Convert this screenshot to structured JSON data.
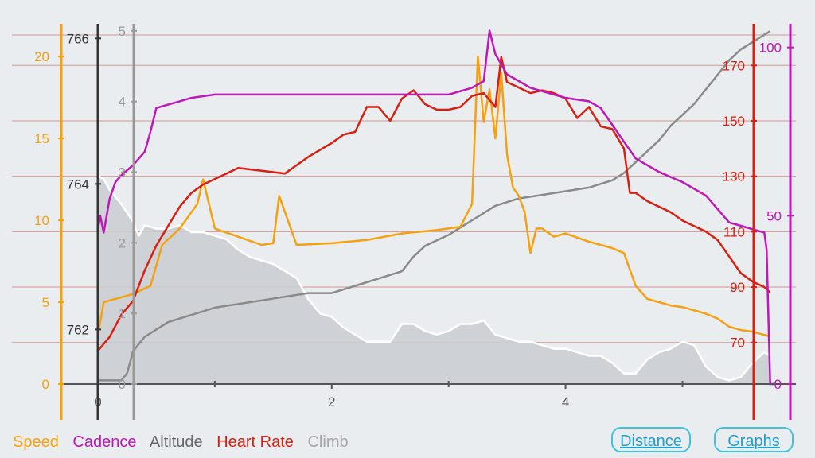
{
  "legend": {
    "speed": "Speed",
    "cadence": "Cadence",
    "altitude": "Altitude",
    "heart_rate": "Heart Rate",
    "climb": "Climb"
  },
  "buttons": {
    "distance": "Distance",
    "graphs": "Graphs"
  },
  "colors": {
    "speed": "#f5a10e",
    "cadence": "#bf17b8",
    "altitude": "#8a8a8a",
    "heart_rate": "#d81f10",
    "climb": "#ffffff",
    "climb_fill": "#c9ccd1",
    "hr_grid": "#d9958e",
    "background": "#e9edf0"
  },
  "chart_data": {
    "type": "line",
    "x": {
      "range": [
        0,
        5.8
      ],
      "ticks": [
        "0",
        "2",
        "4"
      ]
    },
    "axes": {
      "speed": {
        "range": [
          0,
          22
        ],
        "ticks": [
          "0",
          "5",
          "10",
          "15",
          "20"
        ]
      },
      "altitude": {
        "range": [
          761.25,
          766.2
        ],
        "ticks": [
          "762",
          "764",
          "766"
        ]
      },
      "climb": {
        "range": [
          0,
          5.1
        ],
        "ticks": [
          "0",
          "1",
          "2",
          "3",
          "4",
          "5"
        ]
      },
      "heart_rate": {
        "range": [
          55,
          185
        ],
        "ticks": [
          "70",
          "90",
          "110",
          "130",
          "150",
          "170"
        ]
      },
      "cadence": {
        "range": [
          0,
          107
        ],
        "ticks": [
          "0",
          "50",
          "100"
        ]
      }
    },
    "series": [
      {
        "name": "Climb",
        "x": [
          0,
          0.05,
          0.1,
          0.2,
          0.3,
          0.35,
          0.4,
          0.5,
          0.6,
          0.7,
          0.8,
          0.9,
          1.0,
          1.1,
          1.2,
          1.3,
          1.4,
          1.5,
          1.6,
          1.7,
          1.8,
          1.9,
          2.0,
          2.1,
          2.2,
          2.3,
          2.4,
          2.5,
          2.6,
          2.7,
          2.8,
          2.9,
          3.0,
          3.1,
          3.2,
          3.3,
          3.4,
          3.5,
          3.6,
          3.7,
          3.8,
          3.9,
          4.0,
          4.1,
          4.2,
          4.3,
          4.4,
          4.5,
          4.6,
          4.7,
          4.8,
          4.9,
          5.0,
          5.1,
          5.2,
          5.3,
          5.4,
          5.5,
          5.6,
          5.7,
          5.75
        ],
        "values": [
          2.95,
          2.9,
          2.75,
          2.55,
          2.3,
          2.1,
          2.25,
          2.2,
          2.2,
          2.25,
          2.15,
          2.15,
          2.1,
          2.05,
          1.9,
          1.8,
          1.75,
          1.7,
          1.6,
          1.5,
          1.2,
          1.0,
          0.95,
          0.8,
          0.7,
          0.6,
          0.6,
          0.6,
          0.85,
          0.85,
          0.75,
          0.7,
          0.75,
          0.85,
          0.85,
          0.9,
          0.7,
          0.65,
          0.6,
          0.6,
          0.55,
          0.5,
          0.5,
          0.45,
          0.4,
          0.4,
          0.3,
          0.15,
          0.15,
          0.35,
          0.45,
          0.5,
          0.6,
          0.55,
          0.25,
          0.1,
          0.05,
          0.1,
          0.3,
          0.45,
          0.4
        ]
      },
      {
        "name": "Altitude",
        "x": [
          0,
          0.1,
          0.2,
          0.25,
          0.3,
          0.4,
          0.5,
          0.6,
          0.7,
          0.8,
          1.0,
          1.2,
          1.4,
          1.6,
          1.8,
          2.0,
          2.2,
          2.4,
          2.6,
          2.7,
          2.8,
          3.0,
          3.1,
          3.2,
          3.3,
          3.4,
          3.6,
          3.8,
          4.0,
          4.2,
          4.3,
          4.4,
          4.5,
          4.6,
          4.7,
          4.8,
          4.9,
          5.0,
          5.1,
          5.2,
          5.3,
          5.4,
          5.5,
          5.6,
          5.7,
          5.75
        ],
        "values": [
          761.3,
          761.3,
          761.3,
          761.4,
          761.7,
          761.9,
          762.0,
          762.1,
          762.15,
          762.2,
          762.3,
          762.35,
          762.4,
          762.45,
          762.5,
          762.5,
          762.6,
          762.7,
          762.8,
          763.0,
          763.15,
          763.3,
          763.4,
          763.5,
          763.6,
          763.7,
          763.8,
          763.85,
          763.9,
          763.95,
          764.0,
          764.05,
          764.15,
          764.3,
          764.45,
          764.6,
          764.8,
          764.95,
          765.1,
          765.3,
          765.5,
          765.7,
          765.85,
          765.95,
          766.05,
          766.1
        ]
      },
      {
        "name": "Speed",
        "x": [
          0,
          0.05,
          0.15,
          0.3,
          0.45,
          0.55,
          0.7,
          0.85,
          0.9,
          1.0,
          1.2,
          1.4,
          1.5,
          1.55,
          1.7,
          2.0,
          2.3,
          2.6,
          2.9,
          3.1,
          3.2,
          3.25,
          3.3,
          3.35,
          3.4,
          3.45,
          3.5,
          3.55,
          3.6,
          3.65,
          3.7,
          3.75,
          3.8,
          3.9,
          4.0,
          4.2,
          4.4,
          4.5,
          4.6,
          4.7,
          4.8,
          4.9,
          5.0,
          5.1,
          5.2,
          5.3,
          5.4,
          5.5,
          5.6,
          5.7,
          5.75
        ],
        "values": [
          3.0,
          5.0,
          5.2,
          5.5,
          6.0,
          8.5,
          9.5,
          11.0,
          12.5,
          9.5,
          9.0,
          8.5,
          8.6,
          11.5,
          8.5,
          8.6,
          8.8,
          9.2,
          9.4,
          9.6,
          11.0,
          20.0,
          16.0,
          18.0,
          15.0,
          19.0,
          14.0,
          12.0,
          11.5,
          10.5,
          8.0,
          9.5,
          9.5,
          9.0,
          9.2,
          8.7,
          8.3,
          8.0,
          6.0,
          5.2,
          5.0,
          4.8,
          4.7,
          4.5,
          4.3,
          4.0,
          3.5,
          3.3,
          3.2,
          3.0,
          2.9
        ]
      },
      {
        "name": "Heart Rate",
        "x": [
          0,
          0.1,
          0.2,
          0.3,
          0.4,
          0.5,
          0.6,
          0.7,
          0.8,
          0.9,
          1.0,
          1.1,
          1.2,
          1.4,
          1.6,
          1.8,
          2.0,
          2.1,
          2.2,
          2.3,
          2.4,
          2.5,
          2.6,
          2.7,
          2.8,
          2.9,
          3.0,
          3.1,
          3.2,
          3.3,
          3.4,
          3.45,
          3.5,
          3.6,
          3.7,
          3.8,
          3.9,
          4.0,
          4.1,
          4.2,
          4.3,
          4.4,
          4.5,
          4.55,
          4.6,
          4.7,
          4.8,
          4.9,
          5.0,
          5.1,
          5.2,
          5.3,
          5.4,
          5.5,
          5.6,
          5.7,
          5.75
        ],
        "values": [
          67,
          72,
          80,
          85,
          96,
          105,
          112,
          119,
          124,
          127,
          129,
          131,
          133,
          132,
          131,
          137,
          142,
          145,
          146,
          155,
          155,
          150,
          158,
          161,
          156,
          154,
          154,
          155,
          159,
          160,
          155,
          173,
          164,
          162,
          160,
          161,
          160,
          158,
          151,
          155,
          148,
          147,
          140,
          124,
          124,
          121,
          119,
          117,
          114,
          112,
          110,
          107,
          101,
          95,
          92,
          90,
          88
        ]
      },
      {
        "name": "Cadence",
        "x": [
          0,
          0.02,
          0.05,
          0.1,
          0.15,
          0.2,
          0.3,
          0.4,
          0.45,
          0.5,
          0.6,
          0.7,
          0.8,
          1.0,
          1.2,
          1.5,
          2.0,
          2.5,
          3.0,
          3.2,
          3.3,
          3.35,
          3.4,
          3.5,
          3.7,
          3.9,
          4.0,
          4.2,
          4.3,
          4.4,
          4.5,
          4.6,
          4.8,
          5.0,
          5.2,
          5.4,
          5.5,
          5.6,
          5.7,
          5.72,
          5.75,
          5.78
        ],
        "values": [
          46,
          50,
          45,
          55,
          60,
          62,
          65,
          69,
          75,
          82,
          83,
          84,
          85,
          86,
          86,
          86,
          86,
          86,
          86,
          88,
          90,
          105,
          98,
          92,
          88,
          86,
          85,
          84,
          82,
          77,
          72,
          67,
          63,
          60,
          56,
          48,
          47,
          46,
          45,
          40,
          0,
          0
        ]
      }
    ]
  }
}
